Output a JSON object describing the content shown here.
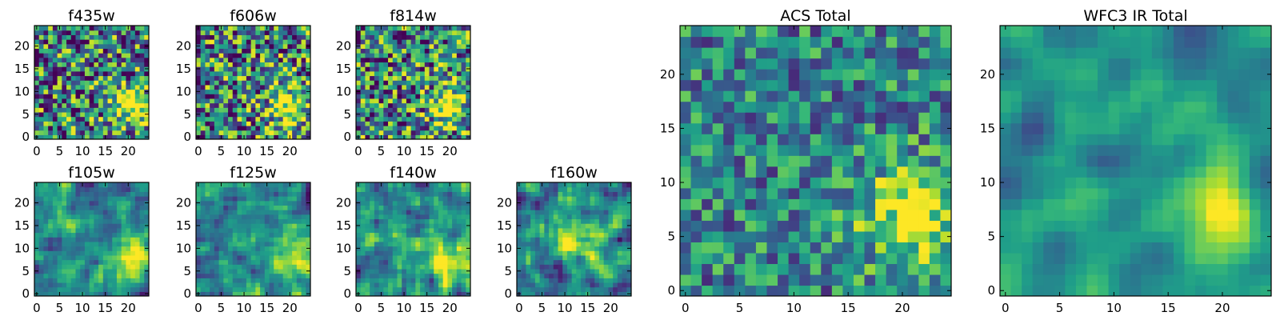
{
  "chart_data": [
    {
      "id": "f435w",
      "type": "heatmap",
      "title": "f435w",
      "grid_size": 25,
      "xlim": [
        -0.5,
        24.5
      ],
      "ylim": [
        -0.5,
        24.5
      ],
      "xticks": [
        0,
        5,
        10,
        15,
        20
      ],
      "yticks": [
        0,
        5,
        10,
        15,
        20
      ],
      "xtick_labels": [
        "0",
        "5",
        "10",
        "15",
        "20"
      ],
      "ytick_labels": [
        "0",
        "5",
        "10",
        "15",
        "20"
      ],
      "colormap": "viridis",
      "seed": 11,
      "blob_center": [
        20,
        7
      ],
      "smoothness": 0,
      "noise": 0.9
    },
    {
      "id": "f606w",
      "type": "heatmap",
      "title": "f606w",
      "grid_size": 25,
      "xlim": [
        -0.5,
        24.5
      ],
      "ylim": [
        -0.5,
        24.5
      ],
      "xticks": [
        0,
        5,
        10,
        15,
        20
      ],
      "yticks": [
        0,
        5,
        10,
        15,
        20
      ],
      "xtick_labels": [
        "0",
        "5",
        "10",
        "15",
        "20"
      ],
      "ytick_labels": [
        "0",
        "5",
        "10",
        "15",
        "20"
      ],
      "colormap": "viridis",
      "seed": 23,
      "blob_center": [
        20,
        7
      ],
      "smoothness": 0,
      "noise": 0.9
    },
    {
      "id": "f814w",
      "type": "heatmap",
      "title": "f814w",
      "grid_size": 25,
      "xlim": [
        -0.5,
        24.5
      ],
      "ylim": [
        -0.5,
        24.5
      ],
      "xticks": [
        0,
        5,
        10,
        15,
        20
      ],
      "yticks": [
        0,
        5,
        10,
        15,
        20
      ],
      "xtick_labels": [
        "0",
        "5",
        "10",
        "15",
        "20"
      ],
      "ytick_labels": [
        "0",
        "5",
        "10",
        "15",
        "20"
      ],
      "colormap": "viridis",
      "seed": 37,
      "blob_center": [
        20,
        7
      ],
      "smoothness": 0,
      "noise": 0.9
    },
    {
      "id": "f105w",
      "type": "heatmap",
      "title": "f105w",
      "grid_size": 25,
      "xlim": [
        -0.5,
        24.5
      ],
      "ylim": [
        -0.5,
        24.5
      ],
      "xticks": [
        0,
        5,
        10,
        15,
        20
      ],
      "yticks": [
        0,
        5,
        10,
        15,
        20
      ],
      "xtick_labels": [
        "0",
        "5",
        "10",
        "15",
        "20"
      ],
      "ytick_labels": [
        "0",
        "5",
        "10",
        "15",
        "20"
      ],
      "colormap": "viridis",
      "seed": 41,
      "blob_center": [
        20,
        7
      ],
      "smoothness": 1,
      "noise": 0.7
    },
    {
      "id": "f125w",
      "type": "heatmap",
      "title": "f125w",
      "grid_size": 25,
      "xlim": [
        -0.5,
        24.5
      ],
      "ylim": [
        -0.5,
        24.5
      ],
      "xticks": [
        0,
        5,
        10,
        15,
        20
      ],
      "yticks": [
        0,
        5,
        10,
        15,
        20
      ],
      "xtick_labels": [
        "0",
        "5",
        "10",
        "15",
        "20"
      ],
      "ytick_labels": [
        "0",
        "5",
        "10",
        "15",
        "20"
      ],
      "colormap": "viridis",
      "seed": 53,
      "blob_center": [
        20,
        7
      ],
      "smoothness": 1,
      "noise": 0.7
    },
    {
      "id": "f140w",
      "type": "heatmap",
      "title": "f140w",
      "grid_size": 25,
      "xlim": [
        -0.5,
        24.5
      ],
      "ylim": [
        -0.5,
        24.5
      ],
      "xticks": [
        0,
        5,
        10,
        15,
        20
      ],
      "yticks": [
        0,
        5,
        10,
        15,
        20
      ],
      "xtick_labels": [
        "0",
        "5",
        "10",
        "15",
        "20"
      ],
      "ytick_labels": [
        "0",
        "5",
        "10",
        "15",
        "20"
      ],
      "colormap": "viridis",
      "seed": 67,
      "blob_center": [
        20,
        7
      ],
      "smoothness": 1,
      "noise": 0.7
    },
    {
      "id": "f160w",
      "type": "heatmap",
      "title": "f160w",
      "grid_size": 25,
      "xlim": [
        -0.5,
        24.5
      ],
      "ylim": [
        -0.5,
        24.5
      ],
      "xticks": [
        0,
        5,
        10,
        15,
        20
      ],
      "yticks": [
        0,
        5,
        10,
        15,
        20
      ],
      "xtick_labels": [
        "0",
        "5",
        "10",
        "15",
        "20"
      ],
      "ytick_labels": [
        "0",
        "5",
        "10",
        "15",
        "20"
      ],
      "colormap": "viridis",
      "seed": 79,
      "blob_center": [
        12,
        12
      ],
      "smoothness": 1,
      "noise": 0.7
    },
    {
      "id": "acs-total",
      "type": "heatmap",
      "title": "ACS Total",
      "grid_size": 25,
      "xlim": [
        -0.5,
        24.5
      ],
      "ylim": [
        -0.5,
        24.5
      ],
      "xticks": [
        0,
        5,
        10,
        15,
        20
      ],
      "yticks": [
        0,
        5,
        10,
        15,
        20
      ],
      "xtick_labels": [
        "0",
        "5",
        "10",
        "15",
        "20"
      ],
      "ytick_labels": [
        "0",
        "5",
        "10",
        "15",
        "20"
      ],
      "colormap": "viridis",
      "seed": 97,
      "blob_center": [
        21,
        7
      ],
      "smoothness": 0,
      "noise": 0.55
    },
    {
      "id": "wfc3-ir-total",
      "type": "heatmap",
      "title": "WFC3 IR Total",
      "grid_size": 25,
      "xlim": [
        -0.5,
        24.5
      ],
      "ylim": [
        -0.5,
        24.5
      ],
      "xticks": [
        0,
        5,
        10,
        15,
        20
      ],
      "yticks": [
        0,
        5,
        10,
        15,
        20
      ],
      "xtick_labels": [
        "0",
        "5",
        "10",
        "15",
        "20"
      ],
      "ytick_labels": [
        "0",
        "5",
        "10",
        "15",
        "20"
      ],
      "colormap": "viridis",
      "seed": 113,
      "blob_center": [
        20,
        7
      ],
      "smoothness": 2,
      "noise": 0.45
    }
  ]
}
